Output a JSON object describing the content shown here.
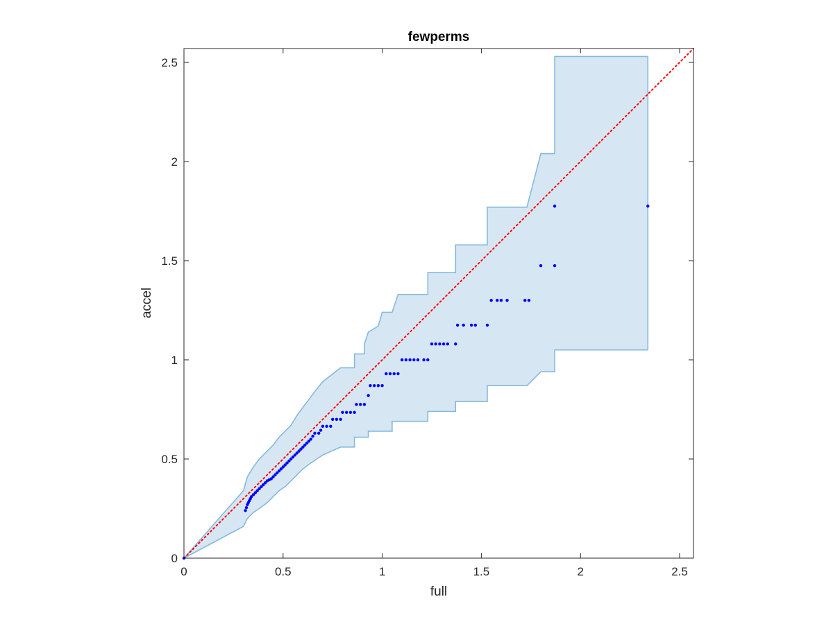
{
  "chart_data": {
    "type": "scatter",
    "title": "fewperms",
    "xlabel": "full",
    "ylabel": "accel",
    "xlim": [
      0,
      2.57
    ],
    "ylim": [
      0,
      2.57
    ],
    "xticks": [
      0,
      0.5,
      1,
      1.5,
      2,
      2.5
    ],
    "yticks": [
      0,
      0.5,
      1,
      1.5,
      2,
      2.5
    ],
    "xtick_labels": [
      "0",
      "0.5",
      "1",
      "1.5",
      "2",
      "2.5"
    ],
    "ytick_labels": [
      "0",
      "0.5",
      "1",
      "1.5",
      "2",
      "2.5"
    ],
    "grid": false,
    "legend": "none",
    "colors": {
      "points": "#0000ff",
      "band_fill": "#d6e6f3",
      "band_edge": "#85b9dd",
      "reference_line": "#ff0000"
    },
    "reference_line": {
      "style": "dotted",
      "from": [
        0,
        0
      ],
      "to": [
        2.57,
        2.57
      ]
    },
    "band_upper": [
      [
        0,
        0
      ],
      [
        0.3,
        0.34
      ],
      [
        0.32,
        0.41
      ],
      [
        0.35,
        0.46
      ],
      [
        0.38,
        0.5
      ],
      [
        0.42,
        0.54
      ],
      [
        0.45,
        0.57
      ],
      [
        0.48,
        0.61
      ],
      [
        0.51,
        0.64
      ],
      [
        0.54,
        0.67
      ],
      [
        0.57,
        0.72
      ],
      [
        0.6,
        0.76
      ],
      [
        0.63,
        0.8
      ],
      [
        0.66,
        0.84
      ],
      [
        0.7,
        0.89
      ],
      [
        0.79,
        0.96
      ],
      [
        0.86,
        0.96
      ],
      [
        0.86,
        1.03
      ],
      [
        0.91,
        1.03
      ],
      [
        0.91,
        1.08
      ],
      [
        0.93,
        1.14
      ],
      [
        0.98,
        1.17
      ],
      [
        1.0,
        1.24
      ],
      [
        1.05,
        1.24
      ],
      [
        1.08,
        1.33
      ],
      [
        1.23,
        1.33
      ],
      [
        1.23,
        1.44
      ],
      [
        1.37,
        1.44
      ],
      [
        1.37,
        1.58
      ],
      [
        1.53,
        1.58
      ],
      [
        1.53,
        1.77
      ],
      [
        1.73,
        1.77
      ],
      [
        1.8,
        2.04
      ],
      [
        1.87,
        2.04
      ],
      [
        1.87,
        2.53
      ],
      [
        2.34,
        2.53
      ]
    ],
    "band_lower": [
      [
        0,
        0
      ],
      [
        0.3,
        0.16
      ],
      [
        0.32,
        0.2
      ],
      [
        0.35,
        0.23
      ],
      [
        0.38,
        0.25
      ],
      [
        0.42,
        0.28
      ],
      [
        0.45,
        0.31
      ],
      [
        0.48,
        0.34
      ],
      [
        0.51,
        0.36
      ],
      [
        0.54,
        0.39
      ],
      [
        0.57,
        0.42
      ],
      [
        0.6,
        0.45
      ],
      [
        0.64,
        0.48
      ],
      [
        0.7,
        0.52
      ],
      [
        0.79,
        0.56
      ],
      [
        0.86,
        0.56
      ],
      [
        0.86,
        0.61
      ],
      [
        0.93,
        0.61
      ],
      [
        0.93,
        0.64
      ],
      [
        1.05,
        0.64
      ],
      [
        1.05,
        0.69
      ],
      [
        1.23,
        0.69
      ],
      [
        1.23,
        0.74
      ],
      [
        1.37,
        0.74
      ],
      [
        1.37,
        0.79
      ],
      [
        1.53,
        0.79
      ],
      [
        1.53,
        0.87
      ],
      [
        1.73,
        0.87
      ],
      [
        1.8,
        0.94
      ],
      [
        1.87,
        0.94
      ],
      [
        1.87,
        1.05
      ],
      [
        2.34,
        1.05
      ]
    ],
    "points": [
      [
        0,
        0
      ],
      [
        0.31,
        0.24
      ],
      [
        0.315,
        0.255
      ],
      [
        0.32,
        0.27
      ],
      [
        0.325,
        0.28
      ],
      [
        0.33,
        0.29
      ],
      [
        0.335,
        0.3
      ],
      [
        0.34,
        0.31
      ],
      [
        0.35,
        0.32
      ],
      [
        0.36,
        0.33
      ],
      [
        0.37,
        0.34
      ],
      [
        0.38,
        0.35
      ],
      [
        0.39,
        0.36
      ],
      [
        0.4,
        0.37
      ],
      [
        0.41,
        0.38
      ],
      [
        0.42,
        0.39
      ],
      [
        0.43,
        0.395
      ],
      [
        0.44,
        0.4
      ],
      [
        0.45,
        0.41
      ],
      [
        0.46,
        0.42
      ],
      [
        0.47,
        0.43
      ],
      [
        0.48,
        0.44
      ],
      [
        0.49,
        0.45
      ],
      [
        0.5,
        0.46
      ],
      [
        0.51,
        0.47
      ],
      [
        0.52,
        0.48
      ],
      [
        0.53,
        0.49
      ],
      [
        0.54,
        0.5
      ],
      [
        0.55,
        0.51
      ],
      [
        0.56,
        0.52
      ],
      [
        0.57,
        0.53
      ],
      [
        0.58,
        0.54
      ],
      [
        0.59,
        0.55
      ],
      [
        0.6,
        0.56
      ],
      [
        0.61,
        0.57
      ],
      [
        0.62,
        0.58
      ],
      [
        0.63,
        0.59
      ],
      [
        0.64,
        0.6
      ],
      [
        0.65,
        0.615
      ],
      [
        0.66,
        0.63
      ],
      [
        0.68,
        0.63
      ],
      [
        0.69,
        0.645
      ],
      [
        0.7,
        0.665
      ],
      [
        0.72,
        0.665
      ],
      [
        0.74,
        0.665
      ],
      [
        0.75,
        0.7
      ],
      [
        0.77,
        0.7
      ],
      [
        0.79,
        0.7
      ],
      [
        0.8,
        0.735
      ],
      [
        0.82,
        0.735
      ],
      [
        0.84,
        0.735
      ],
      [
        0.86,
        0.735
      ],
      [
        0.87,
        0.775
      ],
      [
        0.89,
        0.775
      ],
      [
        0.91,
        0.775
      ],
      [
        0.93,
        0.82
      ],
      [
        0.94,
        0.87
      ],
      [
        0.96,
        0.87
      ],
      [
        0.98,
        0.87
      ],
      [
        1.0,
        0.87
      ],
      [
        1.02,
        0.93
      ],
      [
        1.04,
        0.93
      ],
      [
        1.06,
        0.93
      ],
      [
        1.08,
        0.93
      ],
      [
        1.1,
        1.0
      ],
      [
        1.12,
        1.0
      ],
      [
        1.14,
        1.0
      ],
      [
        1.16,
        1.0
      ],
      [
        1.18,
        1.0
      ],
      [
        1.21,
        1.0
      ],
      [
        1.23,
        1.0
      ],
      [
        1.25,
        1.08
      ],
      [
        1.27,
        1.08
      ],
      [
        1.29,
        1.08
      ],
      [
        1.31,
        1.08
      ],
      [
        1.33,
        1.08
      ],
      [
        1.37,
        1.08
      ],
      [
        1.38,
        1.175
      ],
      [
        1.41,
        1.175
      ],
      [
        1.45,
        1.175
      ],
      [
        1.47,
        1.175
      ],
      [
        1.53,
        1.175
      ],
      [
        1.55,
        1.3
      ],
      [
        1.58,
        1.3
      ],
      [
        1.6,
        1.3
      ],
      [
        1.63,
        1.3
      ],
      [
        1.72,
        1.3
      ],
      [
        1.74,
        1.3
      ],
      [
        1.8,
        1.475
      ],
      [
        1.87,
        1.475
      ],
      [
        1.87,
        1.775
      ],
      [
        2.34,
        1.775
      ]
    ]
  }
}
